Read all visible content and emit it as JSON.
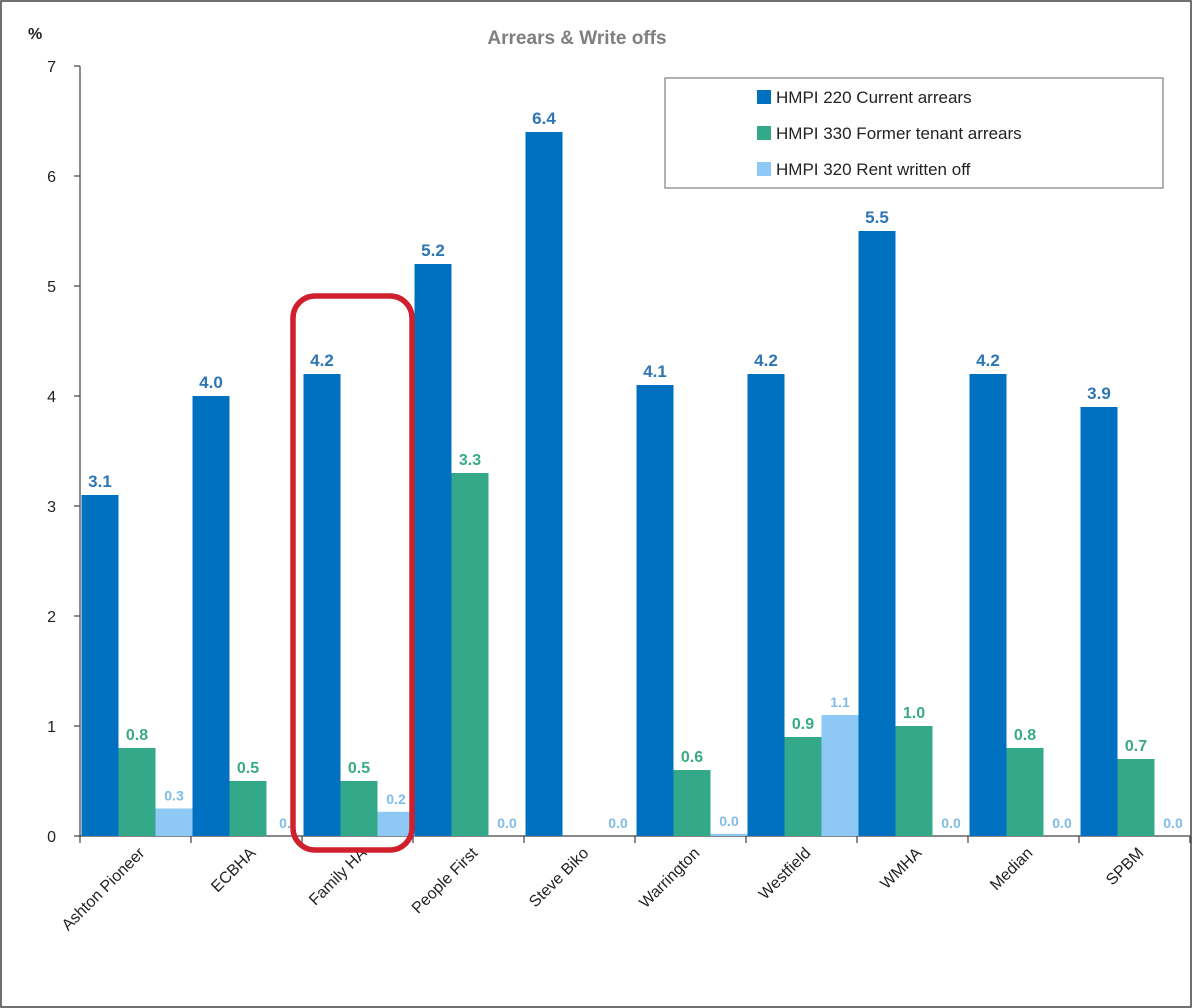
{
  "chart_data": {
    "type": "bar",
    "title": "Arrears & Write offs",
    "ylabel": "%",
    "xlabel": "",
    "ylim": [
      0,
      7
    ],
    "yticks": [
      0,
      1,
      2,
      3,
      4,
      5,
      6,
      7
    ],
    "grid": false,
    "legend_position": "top-right",
    "categories": [
      "Ashton Pioneer",
      "ECBHA",
      "Family HA",
      "People First",
      "Steve Biko",
      "Warrington",
      "Westfield",
      "WMHA",
      "Median",
      "SPBM"
    ],
    "series": [
      {
        "name": "HMPI 220 Current arrears",
        "color": "#0070c0",
        "label_color": "#2e75b6",
        "values": [
          3.1,
          4.0,
          4.2,
          5.2,
          6.4,
          4.1,
          4.2,
          5.5,
          4.2,
          3.9
        ],
        "labels": [
          "3.1",
          "4.0",
          "4.2",
          "5.2",
          "6.4",
          "4.1",
          "4.2",
          "5.5",
          "4.2",
          "3.9"
        ]
      },
      {
        "name": "HMPI 330 Former tenant arrears",
        "color": "#33a98a",
        "label_color": "#3aaa86",
        "values": [
          0.8,
          0.5,
          0.5,
          3.3,
          null,
          0.6,
          0.9,
          1.0,
          0.8,
          0.7
        ],
        "labels": [
          "0.8",
          "0.5",
          "0.5",
          "3.3",
          "",
          "0.6",
          "0.9",
          "1.0",
          "0.8",
          "0.7"
        ]
      },
      {
        "name": "HMPI 320 Rent written off",
        "color": "#8ec9f5",
        "label_color": "#7fbde8",
        "values": [
          0.25,
          0.0,
          0.22,
          0.0,
          0.0,
          0.02,
          1.1,
          0.0,
          0.0,
          0.0
        ],
        "labels": [
          "0.3",
          "0.",
          "0.2",
          "0.0",
          "0.0",
          "0.0",
          "1.1",
          "0.0",
          "0.0",
          "0.0"
        ]
      }
    ],
    "highlight": {
      "category": "Family HA",
      "color": "#d0202e"
    }
  }
}
